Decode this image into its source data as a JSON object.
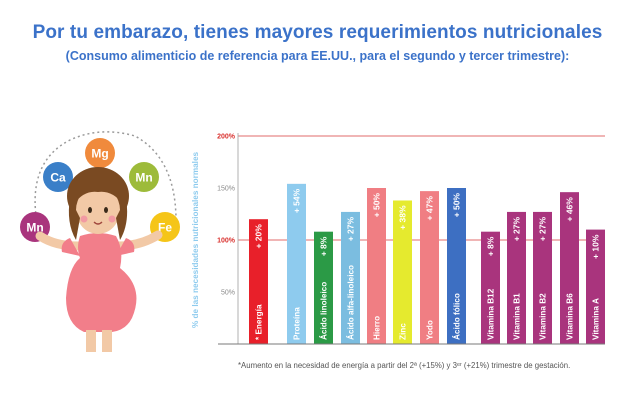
{
  "header": {
    "title": "Por tu embarazo, tienes mayores requerimientos nutricionales",
    "subtitle": "(Consumo alimenticio de referencia para EE.UU., para el segundo y tercer trimestre):"
  },
  "illustration": {
    "bubbles": [
      {
        "label": "Mg",
        "color": "#f08a3c"
      },
      {
        "label": "Ca",
        "color": "#3a7fc8"
      },
      {
        "label": "Mn",
        "color": "#9dbb3a"
      },
      {
        "label": "Mn",
        "color": "#a9347d"
      },
      {
        "label": "Fe",
        "color": "#f5c518"
      }
    ]
  },
  "footnote": "*Aumento en la necesidad de energía a partir del 2ª (+15%) y 3ᵉʳ (+21%) trimestre de gestación.",
  "chart_data": {
    "type": "bar",
    "ylabel": "% de las necesidades nutricionales normales",
    "ylim": [
      0,
      200
    ],
    "yticks": [
      "50%",
      "100%",
      "150%",
      "200%"
    ],
    "reference_lines": [
      100,
      200
    ],
    "categories": [
      "* Energía",
      "Proteína",
      "Ácido linoleico",
      "Ácido alfa-linoleico",
      "Hierro",
      "Zinc",
      "Yodo",
      "Ácido fólico",
      "Vitamina B12",
      "Vitamina B1",
      "Vitamina B2",
      "Vitamina B6",
      "Vitamina A"
    ],
    "values": [
      120,
      154,
      108,
      127,
      150,
      138,
      147,
      150,
      108,
      127,
      127,
      146,
      110
    ],
    "value_labels": [
      "+ 20%",
      "+ 54%",
      "+ 8%",
      "+ 27%",
      "+ 50%",
      "+ 38%",
      "+ 47%",
      "+ 50%",
      "+ 8%",
      "+ 27%",
      "+ 27%",
      "+ 46%",
      "+ 10%"
    ],
    "colors": [
      "#e8202a",
      "#8ecbee",
      "#2b9a46",
      "#7bbde0",
      "#f07e83",
      "#e5ea2e",
      "#f07e83",
      "#3d6fc2",
      "#a9347d",
      "#a9347d",
      "#a9347d",
      "#a9347d",
      "#a9347d"
    ]
  }
}
